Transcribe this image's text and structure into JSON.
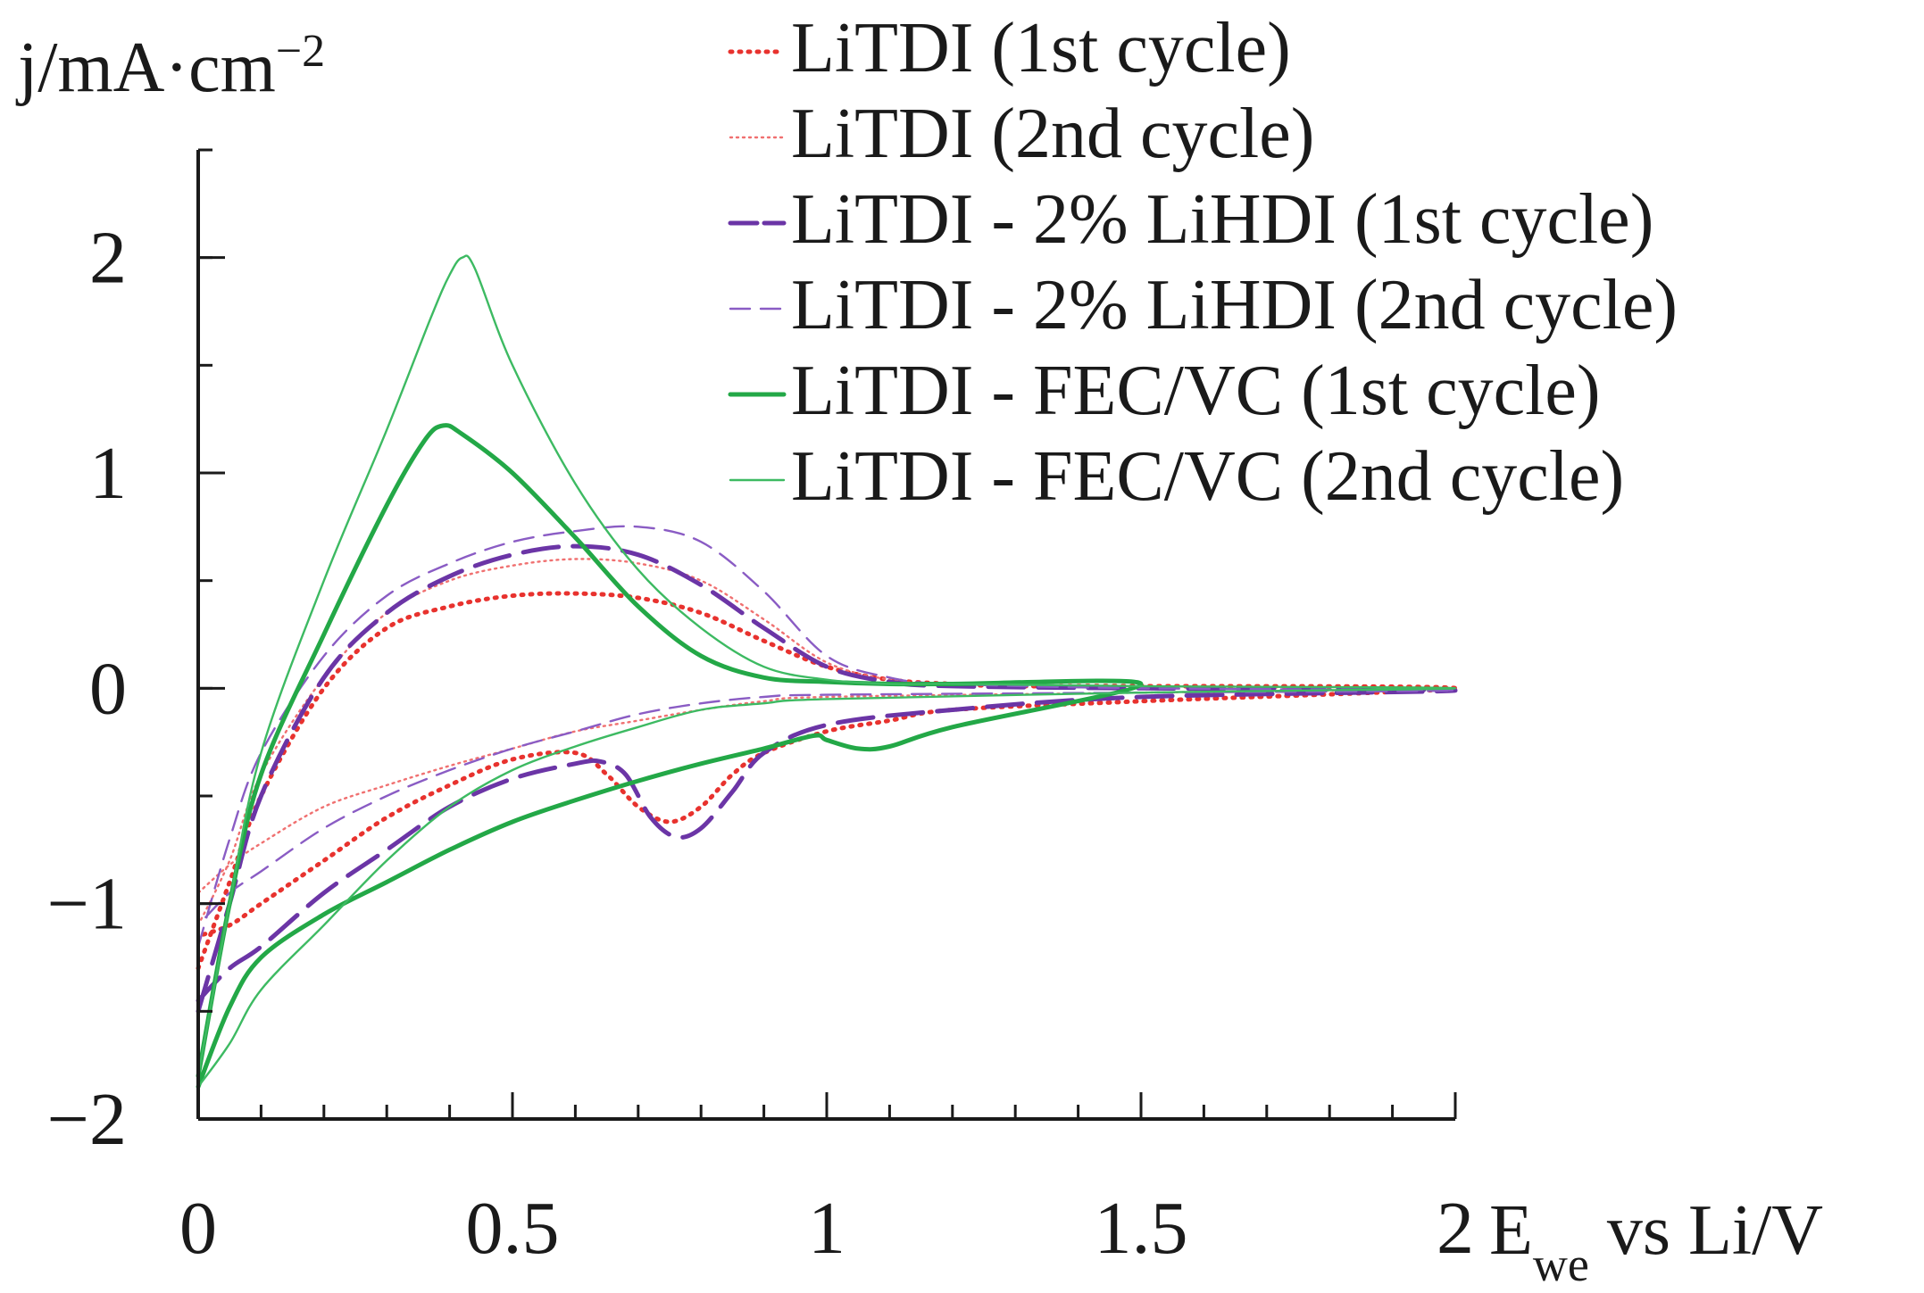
{
  "chart_data": {
    "type": "line",
    "title": "",
    "ylabel": {
      "base": "j/mA·cm",
      "sup": "−2"
    },
    "xlabel": {
      "base": "E",
      "sub": "we",
      "rest": " vs Li/V"
    },
    "xlim": [
      0,
      2
    ],
    "ylim": [
      -2,
      2.5
    ],
    "xticks": [
      0,
      0.5,
      1,
      1.5,
      2
    ],
    "xtick_labels": [
      "0",
      "0.5",
      "1",
      "1.5",
      "2"
    ],
    "xminor": 0.1,
    "yticks": [
      -2,
      -1,
      0,
      1,
      2
    ],
    "ytick_labels": [
      "−2",
      "−1",
      "0",
      "1",
      "2"
    ],
    "yminor": 0.5,
    "grid": false,
    "legend_position": "top-right",
    "series": [
      {
        "name": "LiTDI (1st cycle)",
        "color": "#e8322e",
        "style": "dotted",
        "weight": "thick",
        "x": [
          0,
          0.05,
          0.1,
          0.2,
          0.3,
          0.4,
          0.5,
          0.6,
          0.7,
          0.8,
          0.9,
          1.0,
          1.1,
          1.2,
          1.3,
          1.5,
          2.0,
          1.5,
          1.2,
          1.1,
          1.0,
          0.9,
          0.85,
          0.8,
          0.75,
          0.7,
          0.65,
          0.6,
          0.5,
          0.4,
          0.3,
          0.2,
          0.1,
          0.05,
          0
        ],
        "y": [
          -1.3,
          -0.9,
          -0.5,
          0.0,
          0.28,
          0.38,
          0.43,
          0.44,
          0.42,
          0.35,
          0.22,
          0.1,
          0.04,
          0.02,
          0.01,
          0.01,
          0.0,
          -0.06,
          -0.1,
          -0.15,
          -0.2,
          -0.3,
          -0.4,
          -0.55,
          -0.62,
          -0.55,
          -0.4,
          -0.3,
          -0.33,
          -0.45,
          -0.6,
          -0.8,
          -1.0,
          -1.1,
          -1.15
        ]
      },
      {
        "name": "LiTDI (2nd cycle)",
        "color": "#f07070",
        "style": "dotted",
        "weight": "thin",
        "x": [
          0,
          0.05,
          0.1,
          0.2,
          0.3,
          0.4,
          0.5,
          0.6,
          0.7,
          0.8,
          0.9,
          1.0,
          1.1,
          1.2,
          1.5,
          2.0,
          1.5,
          1.0,
          0.9,
          0.8,
          0.7,
          0.6,
          0.5,
          0.4,
          0.3,
          0.2,
          0.1,
          0.05,
          0
        ],
        "y": [
          -1.1,
          -0.8,
          -0.4,
          0.05,
          0.35,
          0.5,
          0.57,
          0.6,
          0.58,
          0.5,
          0.32,
          0.12,
          0.04,
          0.02,
          0.01,
          0.0,
          -0.02,
          -0.04,
          -0.06,
          -0.1,
          -0.15,
          -0.2,
          -0.28,
          -0.36,
          -0.45,
          -0.55,
          -0.72,
          -0.82,
          -0.95
        ]
      },
      {
        "name": "LiTDI - 2% LiHDI (1st cycle)",
        "color": "#6b35a6",
        "style": "longdash",
        "weight": "thick",
        "x": [
          0,
          0.05,
          0.1,
          0.2,
          0.3,
          0.4,
          0.5,
          0.6,
          0.7,
          0.8,
          0.9,
          1.0,
          1.1,
          1.2,
          1.5,
          2.0,
          1.5,
          1.2,
          1.0,
          0.9,
          0.85,
          0.8,
          0.76,
          0.72,
          0.68,
          0.64,
          0.6,
          0.5,
          0.4,
          0.3,
          0.2,
          0.1,
          0.05,
          0
        ],
        "y": [
          -1.5,
          -1.0,
          -0.5,
          0.05,
          0.35,
          0.52,
          0.62,
          0.66,
          0.62,
          0.48,
          0.28,
          0.1,
          0.03,
          0.01,
          0.0,
          -0.01,
          -0.04,
          -0.1,
          -0.17,
          -0.3,
          -0.48,
          -0.65,
          -0.69,
          -0.6,
          -0.4,
          -0.34,
          -0.35,
          -0.42,
          -0.55,
          -0.75,
          -0.95,
          -1.2,
          -1.3,
          -1.45
        ]
      },
      {
        "name": "LiTDI - 2% LiHDI (2nd cycle)",
        "color": "#8a5cc4",
        "style": "dashed",
        "weight": "thin",
        "x": [
          0,
          0.05,
          0.1,
          0.2,
          0.3,
          0.4,
          0.5,
          0.6,
          0.7,
          0.8,
          0.9,
          1.0,
          1.1,
          1.2,
          1.5,
          2.0,
          1.5,
          1.0,
          0.9,
          0.8,
          0.7,
          0.6,
          0.5,
          0.4,
          0.3,
          0.2,
          0.1,
          0.05,
          0
        ],
        "y": [
          -1.2,
          -0.7,
          -0.3,
          0.15,
          0.43,
          0.58,
          0.68,
          0.73,
          0.75,
          0.68,
          0.45,
          0.15,
          0.05,
          0.02,
          0.0,
          -0.01,
          -0.02,
          -0.03,
          -0.04,
          -0.07,
          -0.12,
          -0.2,
          -0.28,
          -0.38,
          -0.5,
          -0.65,
          -0.85,
          -0.95,
          -1.1
        ]
      },
      {
        "name": "LiTDI - FEC/VC (1st cycle)",
        "color": "#23a847",
        "style": "solid",
        "weight": "thick",
        "x": [
          0,
          0.05,
          0.1,
          0.2,
          0.3,
          0.36,
          0.39,
          0.42,
          0.5,
          0.6,
          0.7,
          0.8,
          0.9,
          1.0,
          1.1,
          1.2,
          1.5,
          1.2,
          1.1,
          1.05,
          1.0,
          0.98,
          0.9,
          0.8,
          0.7,
          0.6,
          0.5,
          0.4,
          0.3,
          0.2,
          0.1,
          0.05,
          0
        ],
        "y": [
          -1.8,
          -1.0,
          -0.4,
          0.25,
          0.85,
          1.15,
          1.22,
          1.18,
          1.0,
          0.7,
          0.38,
          0.15,
          0.05,
          0.03,
          0.02,
          0.02,
          0.02,
          -0.18,
          -0.27,
          -0.28,
          -0.24,
          -0.22,
          -0.28,
          -0.35,
          -0.43,
          -0.52,
          -0.62,
          -0.75,
          -0.9,
          -1.05,
          -1.25,
          -1.48,
          -1.85
        ]
      },
      {
        "name": "LiTDI - FEC/VC (2nd cycle)",
        "color": "#3dba62",
        "style": "solid",
        "weight": "thin",
        "x": [
          0,
          0.05,
          0.1,
          0.2,
          0.3,
          0.37,
          0.4,
          0.42,
          0.44,
          0.5,
          0.6,
          0.7,
          0.8,
          0.9,
          1.0,
          1.1,
          1.2,
          1.5,
          2.0,
          1.5,
          1.0,
          0.9,
          0.8,
          0.7,
          0.6,
          0.5,
          0.4,
          0.3,
          0.2,
          0.1,
          0.05,
          0
        ],
        "y": [
          -1.8,
          -1.0,
          -0.3,
          0.5,
          1.2,
          1.72,
          1.92,
          2.0,
          1.95,
          1.5,
          0.95,
          0.55,
          0.28,
          0.1,
          0.04,
          0.02,
          0.02,
          0.01,
          0.0,
          -0.02,
          -0.05,
          -0.07,
          -0.1,
          -0.18,
          -0.27,
          -0.38,
          -0.55,
          -0.8,
          -1.1,
          -1.4,
          -1.65,
          -1.85
        ]
      }
    ]
  }
}
